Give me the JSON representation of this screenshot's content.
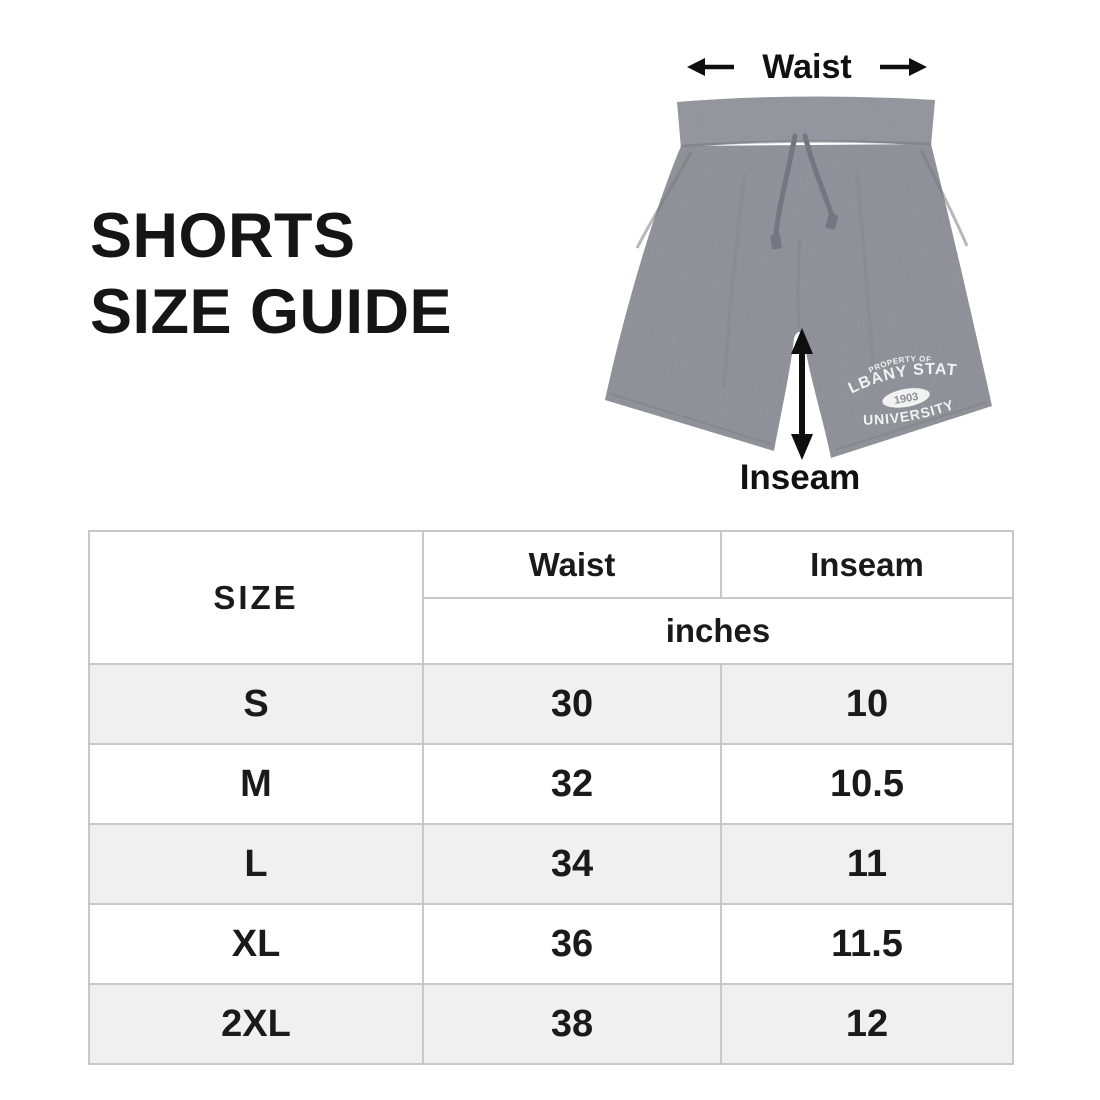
{
  "title": {
    "line1": "SHORTS",
    "line2": "SIZE GUIDE"
  },
  "diagram": {
    "waist_label": "Waist",
    "inseam_label": "Inseam",
    "shorts_print": {
      "line1": "PROPERTY OF",
      "line2": "ALBANY STATE",
      "year": "1903",
      "line3": "UNIVERSITY"
    }
  },
  "chart_data": {
    "type": "table",
    "title": "Shorts Size Guide",
    "columns": [
      "SIZE",
      "Waist",
      "Inseam"
    ],
    "units_label": "inches",
    "rows": [
      {
        "size": "S",
        "waist": "30",
        "inseam": "10"
      },
      {
        "size": "M",
        "waist": "32",
        "inseam": "10.5"
      },
      {
        "size": "L",
        "waist": "34",
        "inseam": "11"
      },
      {
        "size": "XL",
        "waist": "36",
        "inseam": "11.5"
      },
      {
        "size": "2XL",
        "waist": "38",
        "inseam": "12"
      }
    ]
  },
  "colors": {
    "shorts_gray": "#8b8e95",
    "waistband_gray": "#90939b",
    "print_white": "#f2f2f2",
    "table_border": "#c8c8c8",
    "row_alt": "#f0f0f0",
    "text": "#1a1a1a"
  }
}
